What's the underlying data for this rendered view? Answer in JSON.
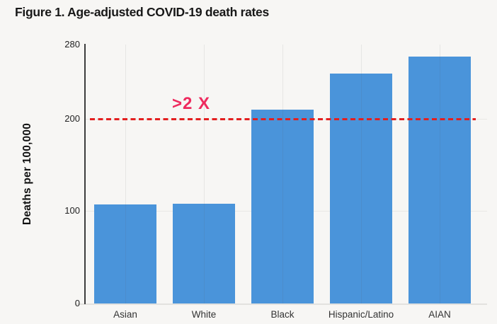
{
  "page": {
    "background": "#f7f6f4"
  },
  "header": {
    "title": "Figure 1. Age-adjusted COVID-19 death rates"
  },
  "chart_data": {
    "type": "bar",
    "title": "Figure 1. Age-adjusted COVID-19 death rates",
    "categories": [
      "Asian",
      "White",
      "Black",
      "Hispanic/Latino",
      "AIAN"
    ],
    "values": [
      107,
      108,
      210,
      249,
      267
    ],
    "xlabel": "",
    "ylabel": "Deaths per 100,000",
    "ylim": [
      0,
      280
    ],
    "yticks": [
      0,
      100,
      200,
      280
    ],
    "grid": true,
    "legend": false,
    "bar_color": "#4a94da",
    "axis_color": "#3d3d3d",
    "reference_line": {
      "y": 200,
      "style": "dashed",
      "color": "#e31f1f"
    },
    "annotation": {
      "text": ">2 X",
      "color": "#ee2a5e"
    }
  }
}
